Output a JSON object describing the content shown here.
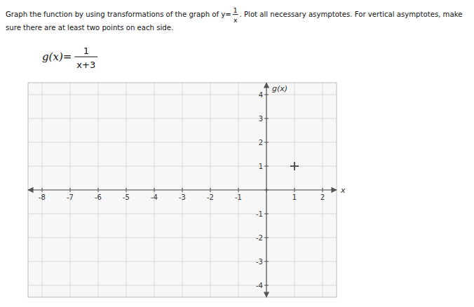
{
  "chart_data": {
    "type": "scatter",
    "annotations": [
      "Graph the function by using transformations of the graph of y=",
      "1",
      "x",
      ". Plot all necessary asymptotes. For vertical asymptotes, make",
      "sure there are at least two points on each side.",
      "g(x)=",
      "1",
      "x+3"
    ],
    "xlabel": "x",
    "ylabel": "g(x)",
    "x": [
      1
    ],
    "values": [
      1
    ],
    "color": "#555555",
    "marker": "+",
    "xlim": [
      -8.5,
      2.5
    ],
    "ylim": [
      -4.5,
      4.5
    ],
    "xticks": [
      -8,
      -7,
      -6,
      -5,
      -4,
      -3,
      -2,
      -1,
      {
        "value": 0,
        "label": null
      },
      1,
      2
    ],
    "yticks": [
      -4,
      -3,
      -2,
      -1,
      {
        "value": 0,
        "label": null
      },
      1,
      2,
      3,
      4
    ],
    "grid": true
  }
}
